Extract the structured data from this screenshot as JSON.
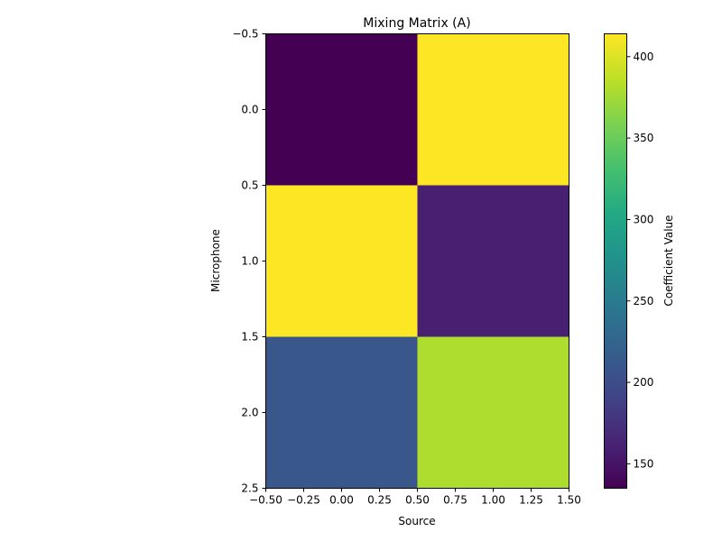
{
  "chart_data": {
    "type": "heatmap",
    "title": "Mixing Matrix (A)",
    "xlabel": "Source",
    "ylabel": "Microphone",
    "colorbar_label": "Coefficient Value",
    "rows": 3,
    "cols": 2,
    "values": [
      [
        135,
        414
      ],
      [
        414,
        160
      ],
      [
        210,
        380
      ]
    ],
    "xlim": [
      -0.5,
      1.5
    ],
    "ylim": [
      2.5,
      -0.5
    ],
    "xticks": [
      -0.5,
      -0.25,
      0.0,
      0.25,
      0.5,
      0.75,
      1.0,
      1.25,
      1.5
    ],
    "xtick_labels": [
      "−0.50",
      "−0.25",
      "0.00",
      "0.25",
      "0.50",
      "0.75",
      "1.00",
      "1.25",
      "1.50"
    ],
    "yticks": [
      -0.5,
      0.0,
      0.5,
      1.0,
      1.5,
      2.0,
      2.5
    ],
    "ytick_labels": [
      "−0.5",
      "0.0",
      "0.5",
      "1.0",
      "1.5",
      "2.0",
      "2.5"
    ],
    "colorbar_range": [
      135,
      414
    ],
    "colorbar_ticks": [
      150,
      200,
      250,
      300,
      350,
      400
    ],
    "colorbar_tick_labels": [
      "150",
      "200",
      "250",
      "300",
      "350",
      "400"
    ],
    "colormap": "viridis",
    "grid": false
  }
}
